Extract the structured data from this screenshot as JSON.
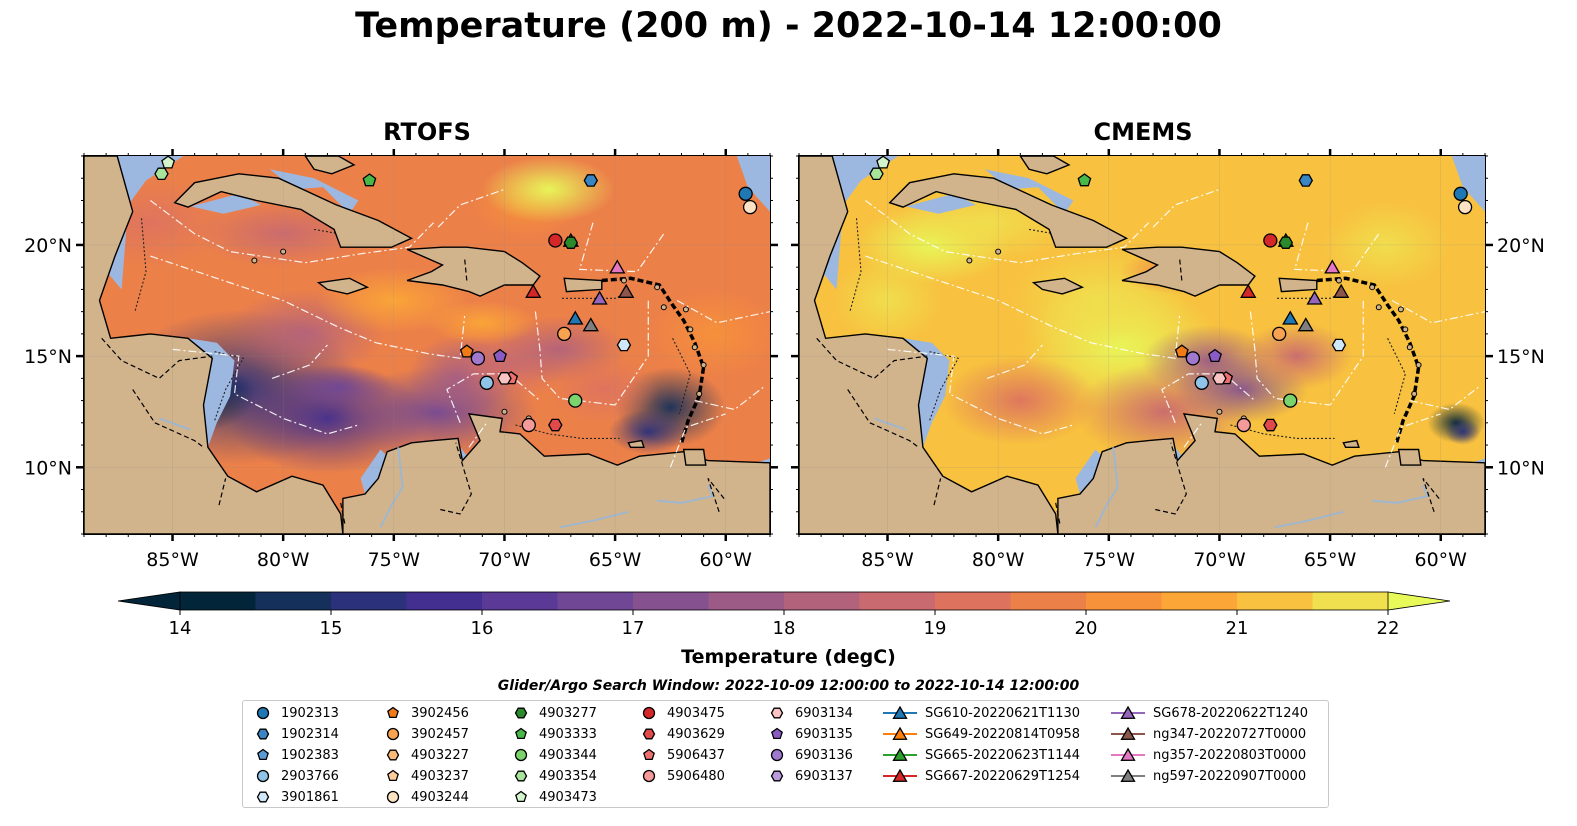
{
  "title": "Temperature (200 m) - 2022-10-14 12:00:00",
  "panels": [
    {
      "title": "RTOFS",
      "palette": "rtofs"
    },
    {
      "title": "CMEMS",
      "palette": "cmems"
    }
  ],
  "map": {
    "lon_range": [
      -89,
      -58
    ],
    "lat_range": [
      7,
      24
    ],
    "lon_ticks": [
      -85,
      -80,
      -75,
      -70,
      -65,
      -60
    ],
    "lat_ticks": [
      10,
      15,
      20
    ],
    "lon_tick_labels": [
      "85°W",
      "80°W",
      "75°W",
      "70°W",
      "65°W",
      "60°W"
    ],
    "lat_tick_labels": [
      "10°N",
      "15°N",
      "20°N"
    ],
    "colors": {
      "land": "#d2b48c",
      "shallow": "#9db8e0",
      "border": "#000000",
      "eez": "#ffffff"
    }
  },
  "colorbar": {
    "min": 14,
    "max": 22,
    "extend": "both",
    "ticks": [
      "14",
      "15",
      "16",
      "17",
      "18",
      "19",
      "20",
      "21",
      "22"
    ],
    "label": "Temperature (degC)",
    "colormap": [
      "#03253a",
      "#15305a",
      "#2b317a",
      "#432f8f",
      "#5a3a96",
      "#6f4795",
      "#85528f",
      "#9c5b87",
      "#b3627c",
      "#c96a70",
      "#dd735f",
      "#ec8049",
      "#f7913a",
      "#fba637",
      "#f8c13f",
      "#f0df4e",
      "#e7fa5a"
    ]
  },
  "search_window": "Glider/Argo Search Window: 2022-10-09 12:00:00 to 2022-10-14 12:00:00",
  "legend": [
    {
      "label": "1902313",
      "marker": "circle",
      "color": "#1f77b4"
    },
    {
      "label": "1902314",
      "marker": "hexagon",
      "color": "#3a86c4"
    },
    {
      "label": "1902383",
      "marker": "pentagon",
      "color": "#5b9bd5"
    },
    {
      "label": "2903766",
      "marker": "circle",
      "color": "#8fc4e8"
    },
    {
      "label": "3901861",
      "marker": "hexagon",
      "color": "#cfe7f7"
    },
    {
      "label": "3902456",
      "marker": "pentagon",
      "color": "#f07b16"
    },
    {
      "label": "3902457",
      "marker": "circle",
      "color": "#f9a251"
    },
    {
      "label": "4903227",
      "marker": "hexagon",
      "color": "#fcb978"
    },
    {
      "label": "4903237",
      "marker": "pentagon",
      "color": "#fdcd9b"
    },
    {
      "label": "4903244",
      "marker": "circle",
      "color": "#fde3c4"
    },
    {
      "label": "4903277",
      "marker": "hexagon",
      "color": "#2b8a2b"
    },
    {
      "label": "4903333",
      "marker": "pentagon",
      "color": "#48b848"
    },
    {
      "label": "4903344",
      "marker": "circle",
      "color": "#7bd36b"
    },
    {
      "label": "4903354",
      "marker": "hexagon",
      "color": "#a6e59a"
    },
    {
      "label": "4903473",
      "marker": "pentagon",
      "color": "#d3f5cb"
    },
    {
      "label": "4903475",
      "marker": "circle",
      "color": "#d62728"
    },
    {
      "label": "4903629",
      "marker": "hexagon",
      "color": "#e04a4a"
    },
    {
      "label": "5906437",
      "marker": "pentagon",
      "color": "#ee6f6f"
    },
    {
      "label": "5906480",
      "marker": "circle",
      "color": "#f59a9a"
    },
    {
      "label": "6903134",
      "marker": "hexagon",
      "color": "#fbc4c4"
    },
    {
      "label": "6903135",
      "marker": "pentagon",
      "color": "#8a5bc4"
    },
    {
      "label": "6903136",
      "marker": "circle",
      "color": "#a079cf"
    },
    {
      "label": "6903137",
      "marker": "hexagon",
      "color": "#bb9ade"
    },
    {
      "label": "SG610-20220621T1130",
      "marker": "triangle",
      "color": "#1f77b4",
      "line": true
    },
    {
      "label": "SG649-20220814T0958",
      "marker": "triangle",
      "color": "#ff7f0e",
      "line": true
    },
    {
      "label": "SG665-20220623T1144",
      "marker": "triangle",
      "color": "#2ca02c",
      "line": true
    },
    {
      "label": "SG667-20220629T1254",
      "marker": "triangle",
      "color": "#d62728",
      "line": true
    },
    {
      "label": "SG678-20220622T1240",
      "marker": "triangle",
      "color": "#9467bd",
      "line": true
    },
    {
      "label": "ng347-20220727T0000",
      "marker": "triangle",
      "color": "#8c564b",
      "line": true
    },
    {
      "label": "ng357-20220803T0000",
      "marker": "triangle",
      "color": "#e377c2",
      "line": true
    },
    {
      "label": "ng597-20220907T0000",
      "marker": "triangle",
      "color": "#7f7f7f",
      "line": true
    }
  ],
  "markers": [
    {
      "id": "1902313",
      "lon": -59.1,
      "lat": 22.3
    },
    {
      "id": "4903244",
      "lon": -58.9,
      "lat": 21.7
    },
    {
      "id": "1902314",
      "lon": -66.1,
      "lat": 22.9
    },
    {
      "id": "4903333",
      "lon": -76.1,
      "lat": 22.9
    },
    {
      "id": "4903354",
      "lon": -85.5,
      "lat": 23.2
    },
    {
      "id": "4903473",
      "lon": -85.2,
      "lat": 23.7
    },
    {
      "id": "4903475",
      "lon": -67.7,
      "lat": 20.2
    },
    {
      "id": "SG665-20220623T1144",
      "lon": -67.0,
      "lat": 20.2
    },
    {
      "id": "4903277",
      "lon": -67.0,
      "lat": 20.1
    },
    {
      "id": "ng357-20220803T0000",
      "lon": -64.9,
      "lat": 19.0
    },
    {
      "id": "SG667-20220629T1254",
      "lon": -68.7,
      "lat": 17.9
    },
    {
      "id": "ng347-20220727T0000",
      "lon": -64.5,
      "lat": 17.9
    },
    {
      "id": "SG678-20220622T1240",
      "lon": -65.7,
      "lat": 17.6
    },
    {
      "id": "SG610-20220621T1130",
      "lon": -66.8,
      "lat": 16.7
    },
    {
      "id": "ng597-20220907T0000",
      "lon": -66.1,
      "lat": 16.4
    },
    {
      "id": "3902457",
      "lon": -67.3,
      "lat": 16.0
    },
    {
      "id": "3901861",
      "lon": -64.6,
      "lat": 15.5
    },
    {
      "id": "3902456",
      "lon": -71.7,
      "lat": 15.2
    },
    {
      "id": "6903135",
      "lon": -70.2,
      "lat": 15.0
    },
    {
      "id": "6903136",
      "lon": -71.2,
      "lat": 14.9
    },
    {
      "id": "5906437",
      "lon": -69.7,
      "lat": 14.0
    },
    {
      "id": "6903134",
      "lon": -70.0,
      "lat": 14.0
    },
    {
      "id": "2903766",
      "lon": -70.8,
      "lat": 13.8
    },
    {
      "id": "4903344",
      "lon": -66.8,
      "lat": 13.0
    },
    {
      "id": "4903629",
      "lon": -67.7,
      "lat": 11.9
    },
    {
      "id": "5906480",
      "lon": -68.9,
      "lat": 11.9
    }
  ]
}
